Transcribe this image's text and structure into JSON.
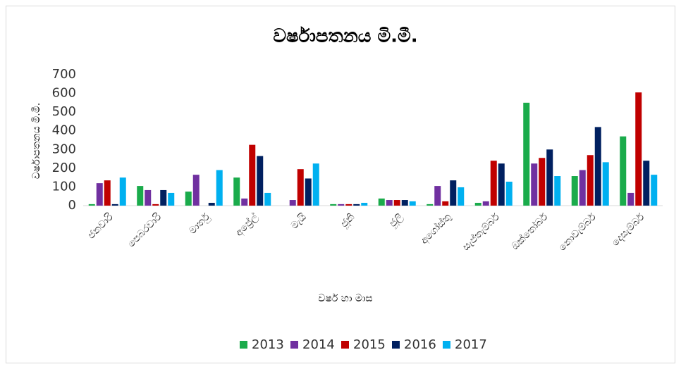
{
  "chart_data": {
    "type": "bar",
    "title": "වර්ෂාපතනය මි.මී.",
    "x_label": "වර්ෂ හා මාස",
    "y_label": "වර්ෂාපතනය මි.මී.",
    "categories": [
      "ජනවාරි",
      "පෙබරවාරි",
      "මාර්තු",
      "අප්‍රේල්",
      "මැයි",
      "ජූනි",
      "ජූලි",
      "අගෝස්තු",
      "සැප්තැම්බර්",
      "ඔක්තෝබර්",
      "නොවැම්බර්",
      "දෙසැම්බර්"
    ],
    "series": [
      {
        "name": "2013",
        "color": "#1aab4b",
        "values": [
          8,
          105,
          75,
          150,
          0,
          8,
          38,
          8,
          15,
          550,
          158,
          370
        ]
      },
      {
        "name": "2014",
        "color": "#7030a0",
        "values": [
          120,
          83,
          165,
          38,
          30,
          8,
          30,
          105,
          23,
          225,
          190,
          68
        ]
      },
      {
        "name": "2015",
        "color": "#c00000",
        "values": [
          135,
          8,
          0,
          325,
          195,
          8,
          30,
          23,
          240,
          255,
          270,
          605
        ]
      },
      {
        "name": "2016",
        "color": "#002060",
        "values": [
          8,
          83,
          15,
          265,
          145,
          8,
          30,
          135,
          225,
          300,
          420,
          240
        ]
      },
      {
        "name": "2017",
        "color": "#00b0f0",
        "values": [
          150,
          68,
          190,
          68,
          225,
          15,
          23,
          98,
          128,
          158,
          232,
          165
        ]
      }
    ],
    "ylim": [
      0,
      700
    ],
    "yticks": [
      0,
      100,
      200,
      300,
      400,
      500,
      600,
      700
    ],
    "grid": false,
    "legend": "bottom"
  }
}
